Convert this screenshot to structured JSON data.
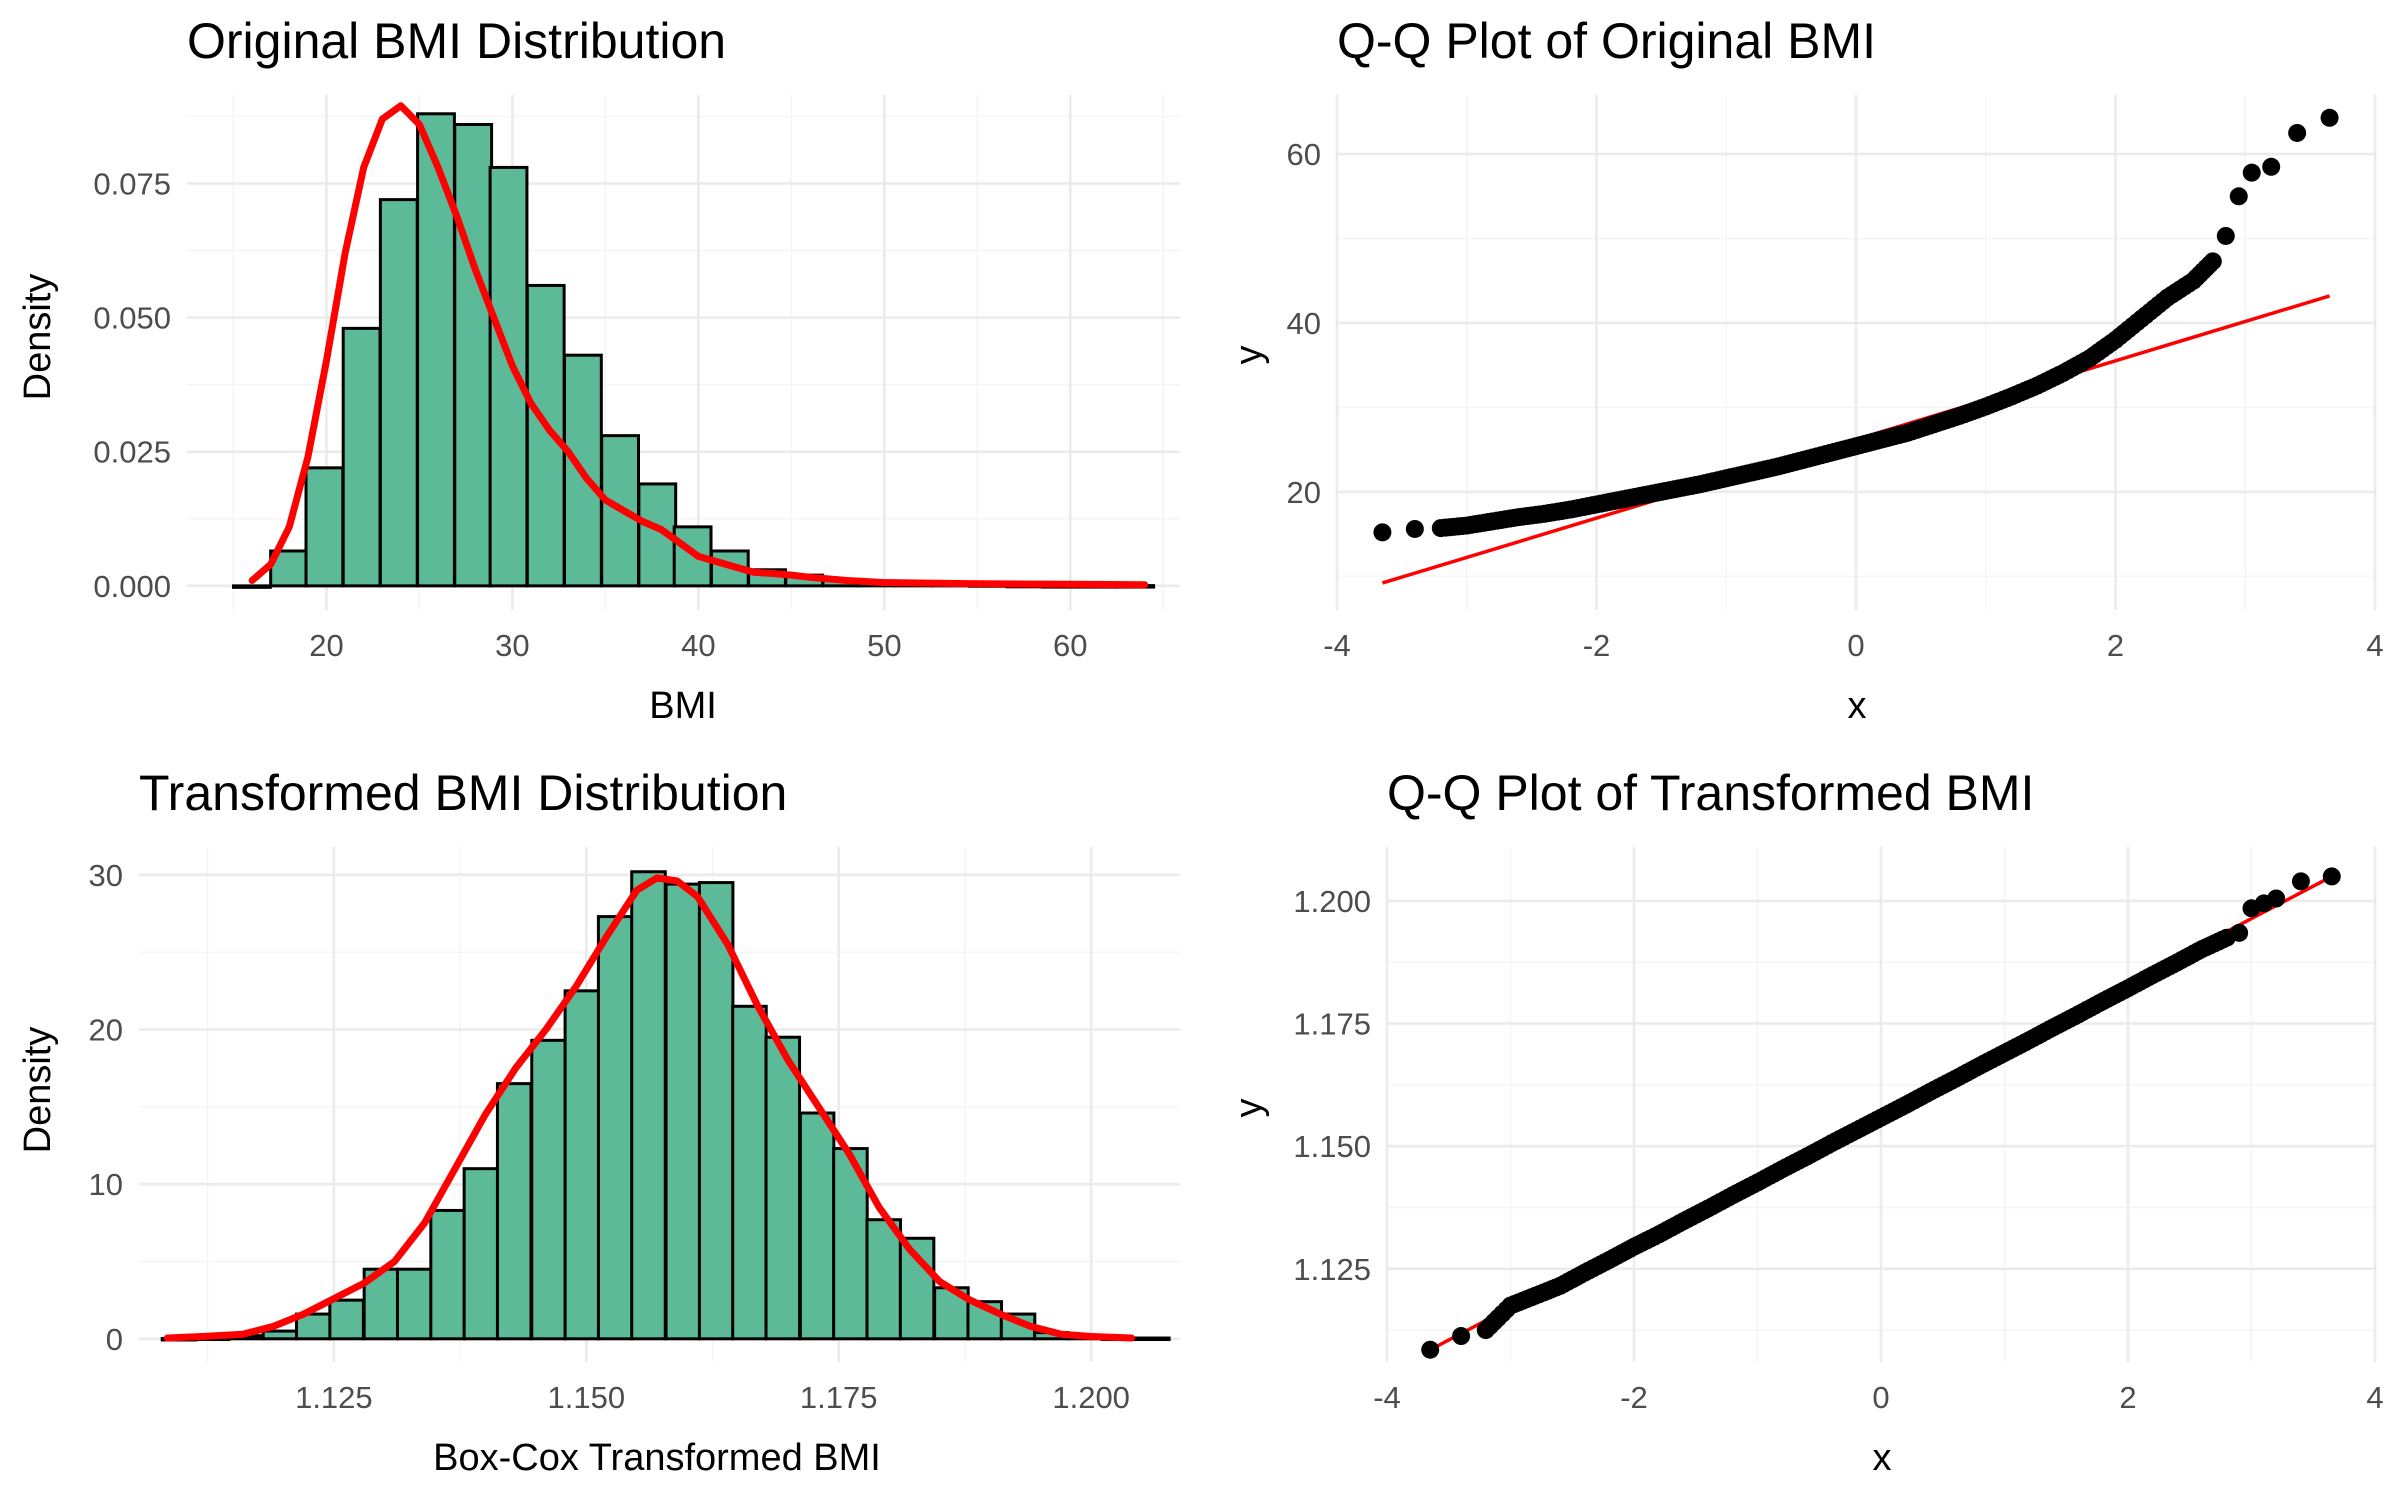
{
  "chart_data": [
    {
      "id": "orig-hist",
      "type": "histogram",
      "title": "Original BMI Distribution",
      "xlabel": "BMI",
      "ylabel": "Density",
      "xlim": [
        12.5,
        65.9
      ],
      "ylim": [
        -0.0045,
        0.0915
      ],
      "x_ticks": [
        20,
        30,
        40,
        50,
        60
      ],
      "y_ticks": [
        0,
        0.025,
        0.05,
        0.075
      ],
      "y_tick_labels": [
        "0.000",
        "0.025",
        "0.050",
        "0.075"
      ],
      "grid": true,
      "bar_color": "#5dba99",
      "bar_border": "#000000",
      "curve_color": "#ff0000",
      "bins": [
        [
          15.0,
          0.0
        ],
        [
          17.0,
          0.0065
        ],
        [
          18.9,
          0.022
        ],
        [
          20.9,
          0.048
        ],
        [
          22.9,
          0.072
        ],
        [
          24.9,
          0.088
        ],
        [
          26.9,
          0.086
        ],
        [
          28.8,
          0.078
        ],
        [
          30.8,
          0.056
        ],
        [
          32.8,
          0.043
        ],
        [
          34.8,
          0.028
        ],
        [
          36.8,
          0.019
        ],
        [
          38.7,
          0.011
        ],
        [
          40.7,
          0.0065
        ],
        [
          42.7,
          0.003
        ],
        [
          44.7,
          0.002
        ],
        [
          46.7,
          0.0012
        ],
        [
          48.6,
          0.0008
        ],
        [
          50.6,
          0.0005
        ],
        [
          52.6,
          0.0003
        ],
        [
          54.6,
          0.0002
        ],
        [
          56.6,
          0.0001
        ],
        [
          58.5,
          5e-05
        ],
        [
          60.5,
          5e-05
        ],
        [
          62.5,
          5e-05
        ]
      ],
      "bin_width": 1.98,
      "density_curve": [
        [
          16,
          0.001
        ],
        [
          17,
          0.004
        ],
        [
          18,
          0.011
        ],
        [
          19,
          0.024
        ],
        [
          20,
          0.042
        ],
        [
          21,
          0.062
        ],
        [
          22,
          0.078
        ],
        [
          23,
          0.087
        ],
        [
          24,
          0.0895
        ],
        [
          25,
          0.086
        ],
        [
          26,
          0.078
        ],
        [
          27,
          0.069
        ],
        [
          28,
          0.059
        ],
        [
          29,
          0.05
        ],
        [
          30,
          0.041
        ],
        [
          31,
          0.034
        ],
        [
          32,
          0.029
        ],
        [
          33,
          0.025
        ],
        [
          34,
          0.02
        ],
        [
          35,
          0.016
        ],
        [
          36,
          0.014
        ],
        [
          37,
          0.012
        ],
        [
          38,
          0.0105
        ],
        [
          39,
          0.008
        ],
        [
          40,
          0.0055
        ],
        [
          41,
          0.0045
        ],
        [
          42,
          0.0035
        ],
        [
          43,
          0.0025
        ],
        [
          44,
          0.0023
        ],
        [
          45,
          0.002
        ],
        [
          46,
          0.0016
        ],
        [
          48,
          0.001
        ],
        [
          50,
          0.0006
        ],
        [
          55,
          0.0004
        ],
        [
          60,
          0.0003
        ],
        [
          64,
          0.0002
        ]
      ]
    },
    {
      "id": "orig-qq",
      "type": "scatter",
      "title": "Q-Q Plot of Original BMI",
      "xlabel": "x",
      "ylabel": "y",
      "xlim": [
        -4,
        4
      ],
      "ylim": [
        6.0,
        67.0
      ],
      "x_ticks": [
        -4,
        -2,
        0,
        2,
        4
      ],
      "y_ticks": [
        20,
        40,
        60
      ],
      "grid": true,
      "point_color": "#000000",
      "line_color": "#ff0000",
      "reference_line": [
        [
          -3.65,
          9.2
        ],
        [
          3.65,
          43.2
        ]
      ],
      "quantiles": [
        [
          -3.65,
          15.2
        ],
        [
          -3.4,
          15.6
        ],
        [
          -3.2,
          15.7
        ],
        [
          -3.0,
          16.0
        ],
        [
          -2.8,
          16.5
        ],
        [
          -2.6,
          17.0
        ],
        [
          -2.4,
          17.4
        ],
        [
          -2.2,
          17.9
        ],
        [
          -2.0,
          18.5
        ],
        [
          -1.8,
          19.1
        ],
        [
          -1.6,
          19.7
        ],
        [
          -1.4,
          20.3
        ],
        [
          -1.2,
          20.9
        ],
        [
          -1.0,
          21.6
        ],
        [
          -0.8,
          22.3
        ],
        [
          -0.6,
          23.0
        ],
        [
          -0.4,
          23.8
        ],
        [
          -0.2,
          24.6
        ],
        [
          0.0,
          25.4
        ],
        [
          0.2,
          26.2
        ],
        [
          0.4,
          27.0
        ],
        [
          0.6,
          28.0
        ],
        [
          0.8,
          29.0
        ],
        [
          1.0,
          30.1
        ],
        [
          1.2,
          31.3
        ],
        [
          1.4,
          32.6
        ],
        [
          1.6,
          34.1
        ],
        [
          1.8,
          35.8
        ],
        [
          2.0,
          38.0
        ],
        [
          2.2,
          40.5
        ],
        [
          2.4,
          43.0
        ],
        [
          2.6,
          45.0
        ],
        [
          2.75,
          47.3
        ],
        [
          2.85,
          50.3
        ],
        [
          2.95,
          55.0
        ],
        [
          3.05,
          57.8
        ],
        [
          3.2,
          58.5
        ],
        [
          3.4,
          62.5
        ],
        [
          3.65,
          64.3
        ]
      ]
    },
    {
      "id": "trans-hist",
      "type": "histogram",
      "title": "Transformed BMI Distribution",
      "xlabel": "Box-Cox Transformed BMI",
      "ylabel": "Density",
      "xlim": [
        1.1057,
        1.2088
      ],
      "ylim": [
        -1.5,
        31.8
      ],
      "x_ticks": [
        1.125,
        1.15,
        1.175,
        1.2
      ],
      "x_tick_labels": [
        "1.125",
        "1.150",
        "1.175",
        "1.200"
      ],
      "y_ticks": [
        0,
        10,
        20,
        30
      ],
      "grid": true,
      "bar_color": "#5dba99",
      "bar_border": "#000000",
      "curve_color": "#ff0000",
      "bins": [
        [
          1.108,
          0.02
        ],
        [
          1.1113,
          0.05
        ],
        [
          1.1147,
          0.2
        ],
        [
          1.118,
          0.5
        ],
        [
          1.1213,
          1.6
        ],
        [
          1.1246,
          2.5
        ],
        [
          1.128,
          4.5
        ],
        [
          1.1313,
          4.5
        ],
        [
          1.1346,
          8.3
        ],
        [
          1.1379,
          11.0
        ],
        [
          1.1412,
          16.5
        ],
        [
          1.1446,
          19.3
        ],
        [
          1.1479,
          22.5
        ],
        [
          1.1512,
          27.3
        ],
        [
          1.1545,
          30.2
        ],
        [
          1.1579,
          29.4
        ],
        [
          1.1612,
          29.5
        ],
        [
          1.1645,
          21.5
        ],
        [
          1.1678,
          19.5
        ],
        [
          1.1712,
          14.6
        ],
        [
          1.1745,
          12.3
        ],
        [
          1.1778,
          7.7
        ],
        [
          1.1811,
          6.5
        ],
        [
          1.1845,
          3.3
        ],
        [
          1.1878,
          2.4
        ],
        [
          1.1911,
          1.6
        ],
        [
          1.1944,
          0.4
        ],
        [
          1.1977,
          0.2
        ],
        [
          1.2011,
          0.05
        ],
        [
          1.2044,
          0.05
        ]
      ],
      "bin_width": 0.00332,
      "density_curve": [
        [
          1.1085,
          0.05
        ],
        [
          1.112,
          0.15
        ],
        [
          1.116,
          0.3
        ],
        [
          1.119,
          0.8
        ],
        [
          1.122,
          1.6
        ],
        [
          1.125,
          2.6
        ],
        [
          1.128,
          3.6
        ],
        [
          1.131,
          5.0
        ],
        [
          1.134,
          7.5
        ],
        [
          1.137,
          11.0
        ],
        [
          1.14,
          14.5
        ],
        [
          1.143,
          17.5
        ],
        [
          1.146,
          20.0
        ],
        [
          1.149,
          22.8
        ],
        [
          1.152,
          26.0
        ],
        [
          1.155,
          29.0
        ],
        [
          1.157,
          29.8
        ],
        [
          1.159,
          29.6
        ],
        [
          1.161,
          28.6
        ],
        [
          1.164,
          25.5
        ],
        [
          1.167,
          21.5
        ],
        [
          1.17,
          18.0
        ],
        [
          1.173,
          15.0
        ],
        [
          1.176,
          12.0
        ],
        [
          1.179,
          8.5
        ],
        [
          1.182,
          5.8
        ],
        [
          1.185,
          3.7
        ],
        [
          1.188,
          2.5
        ],
        [
          1.191,
          1.6
        ],
        [
          1.194,
          0.8
        ],
        [
          1.197,
          0.3
        ],
        [
          1.2,
          0.15
        ],
        [
          1.204,
          0.05
        ]
      ]
    },
    {
      "id": "trans-qq",
      "type": "scatter",
      "title": "Q-Q Plot of Transformed BMI",
      "xlabel": "x",
      "ylabel": "y",
      "xlim": [
        -4,
        4
      ],
      "ylim": [
        1.106,
        1.211
      ],
      "x_ticks": [
        -4,
        -2,
        0,
        2,
        4
      ],
      "y_ticks": [
        1.125,
        1.15,
        1.175,
        1.2
      ],
      "y_tick_labels": [
        "1.125",
        "1.150",
        "1.175",
        "1.200"
      ],
      "grid": true,
      "point_color": "#000000",
      "line_color": "#ff0000",
      "reference_line": [
        [
          -3.65,
          1.1085
        ],
        [
          3.65,
          1.205
        ]
      ],
      "quantiles": [
        [
          -3.65,
          1.1085
        ],
        [
          -3.4,
          1.1113
        ],
        [
          -3.2,
          1.1125
        ],
        [
          -3.0,
          1.1175
        ],
        [
          -2.8,
          1.1195
        ],
        [
          -2.6,
          1.1215
        ],
        [
          -2.4,
          1.1242
        ],
        [
          -2.2,
          1.1268
        ],
        [
          -2.0,
          1.1295
        ],
        [
          -1.8,
          1.132
        ],
        [
          -1.6,
          1.1347
        ],
        [
          -1.4,
          1.1373
        ],
        [
          -1.2,
          1.14
        ],
        [
          -1.0,
          1.1426
        ],
        [
          -0.8,
          1.1453
        ],
        [
          -0.6,
          1.1479
        ],
        [
          -0.4,
          1.1506
        ],
        [
          -0.2,
          1.1532
        ],
        [
          0.0,
          1.1558
        ],
        [
          0.2,
          1.1584
        ],
        [
          0.4,
          1.1611
        ],
        [
          0.6,
          1.1637
        ],
        [
          0.8,
          1.1664
        ],
        [
          1.0,
          1.169
        ],
        [
          1.2,
          1.1716
        ],
        [
          1.4,
          1.1743
        ],
        [
          1.6,
          1.1769
        ],
        [
          1.8,
          1.1796
        ],
        [
          2.0,
          1.1822
        ],
        [
          2.2,
          1.1849
        ],
        [
          2.4,
          1.1875
        ],
        [
          2.6,
          1.1902
        ],
        [
          2.8,
          1.1925
        ],
        [
          2.9,
          1.1935
        ],
        [
          3.0,
          1.1985
        ],
        [
          3.1,
          1.1995
        ],
        [
          3.2,
          1.2005
        ],
        [
          3.4,
          1.204
        ],
        [
          3.65,
          1.205
        ]
      ]
    }
  ]
}
